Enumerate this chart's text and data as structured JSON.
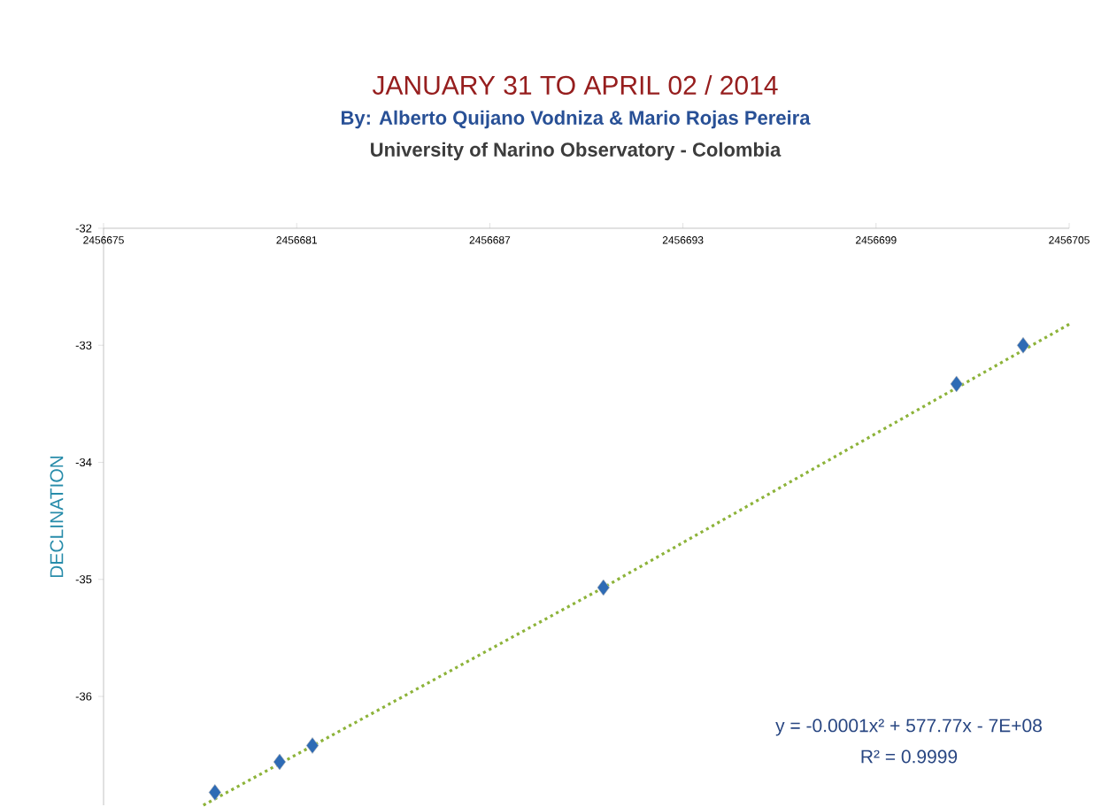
{
  "chart_data": {
    "type": "scatter",
    "title": "JANUARY 31 TO APRIL 02 / 2014",
    "subtitle": "By: Alberto Quijano Vodniza & Mario Rojas Pereira",
    "ylabel": "DECLINATION",
    "annotations": [
      "University of Narino Observatory - Colombia",
      "y = -0.0001x² + 577.77x - 7E+08",
      "R² = 0.9999"
    ],
    "marker": "diamond",
    "grid": false,
    "xlim": [
      2456675,
      2456705
    ],
    "xticks": [
      2456675,
      2456681,
      2456687,
      2456693,
      2456699,
      2456705
    ],
    "ylim": [
      -36.93,
      -32
    ],
    "yticks": [
      -32,
      -33,
      -34,
      -35,
      -36
    ],
    "series": [
      {
        "color": "#2e6bb5",
        "x": [
          2456678.46,
          2456680.47,
          2456681.49,
          2456690.53,
          2456701.5,
          2456703.57
        ],
        "values": [
          -36.82,
          -36.56,
          -36.42,
          -35.07,
          -33.33,
          -33.0
        ]
      },
      {
        "type": "line",
        "color": "#8db33a",
        "line_style": "dotted",
        "marker": "none",
        "x": [
          2456678.1,
          2456690.53,
          2456705
        ],
        "values": [
          -36.93,
          -35.07,
          -32.82
        ]
      }
    ]
  }
}
